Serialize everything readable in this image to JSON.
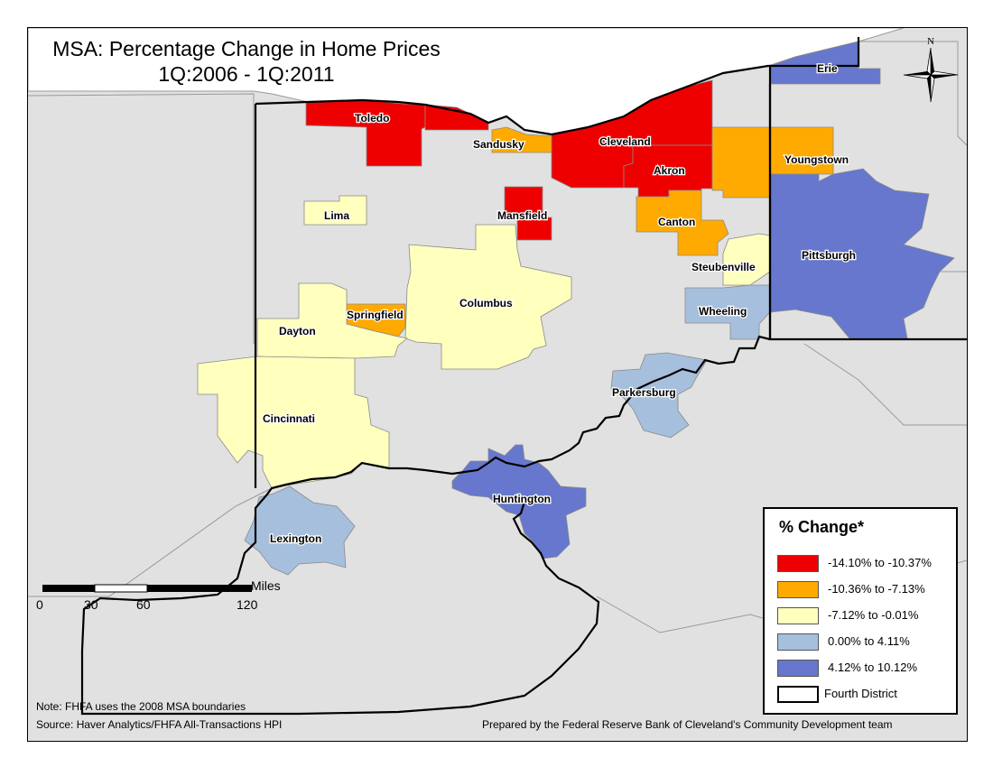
{
  "title": {
    "line1": "MSA: Percentage Change in Home Prices",
    "line2": "1Q:2006 - 1Q:2011"
  },
  "colors": {
    "c1": "#ee0000",
    "c2": "#ffaa00",
    "c3": "#ffffbe",
    "c4": "#a6bfdd",
    "c5": "#6677cd",
    "land": "#e1e1e1",
    "lake": "#ffffff"
  },
  "msa": [
    {
      "name": "Toledo",
      "class": "c1"
    },
    {
      "name": "Sandusky",
      "class": "c2"
    },
    {
      "name": "Cleveland",
      "class": "c1"
    },
    {
      "name": "Akron",
      "class": "c1"
    },
    {
      "name": "Youngstown",
      "class": "c2"
    },
    {
      "name": "Erie",
      "class": "c5"
    },
    {
      "name": "Lima",
      "class": "c3"
    },
    {
      "name": "Mansfield",
      "class": "c1"
    },
    {
      "name": "Canton",
      "class": "c2"
    },
    {
      "name": "Steubenville",
      "class": "c3"
    },
    {
      "name": "Pittsburgh",
      "class": "c5"
    },
    {
      "name": "Wheeling",
      "class": "c4"
    },
    {
      "name": "Columbus",
      "class": "c3"
    },
    {
      "name": "Springfield",
      "class": "c2"
    },
    {
      "name": "Dayton",
      "class": "c3"
    },
    {
      "name": "Parkersburg",
      "class": "c4"
    },
    {
      "name": "Cincinnati",
      "class": "c3"
    },
    {
      "name": "Huntington",
      "class": "c5"
    },
    {
      "name": "Lexington",
      "class": "c4"
    }
  ],
  "legend": {
    "title": "% Change*",
    "items": [
      {
        "label": "-14.10% to -10.37%",
        "color": "#ee0000"
      },
      {
        "label": "-10.36% to -7.13%",
        "color": "#ffaa00"
      },
      {
        "label": "-7.12% to -0.01%",
        "color": "#ffffbe"
      },
      {
        "label": "0.00% to 4.11%",
        "color": "#a6bfdd"
      },
      {
        "label": "4.12% to 10.12%",
        "color": "#6677cd"
      }
    ],
    "district_label": "Fourth District"
  },
  "scale": {
    "unit": "Miles",
    "ticks": [
      "0",
      "30",
      "60",
      "120"
    ]
  },
  "north": "N",
  "footer": {
    "note": "Note: FHFA uses the 2008 MSA boundaries",
    "source": "Source: Haver Analytics/FHFA All-Transactions HPI",
    "credit": "Prepared by the Federal Reserve Bank of Cleveland's Community Development team"
  }
}
